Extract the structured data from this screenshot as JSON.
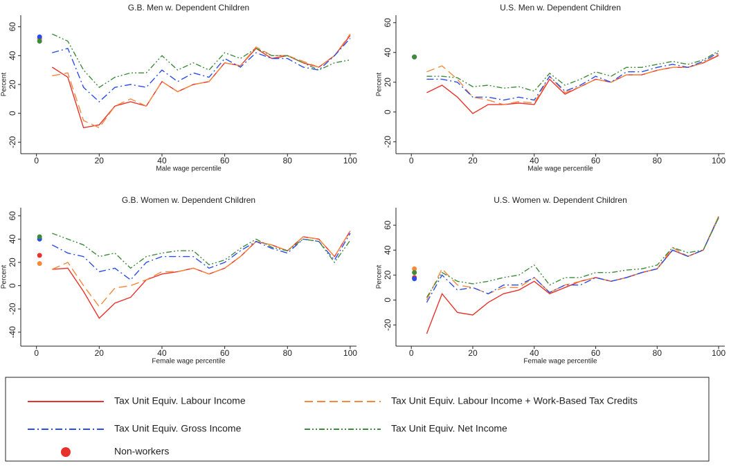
{
  "chart_data": [
    {
      "type": "line",
      "title": "G.B. Men w. Dependent Children",
      "x_label": "Male wage percentile",
      "y_label": "Percent",
      "xlim": [
        -5,
        102
      ],
      "xticks": [
        0,
        20,
        40,
        60,
        80,
        100
      ],
      "ylim": [
        -28,
        68
      ],
      "yticks": [
        -20,
        0,
        20,
        40,
        60
      ],
      "nonworker_x": 1,
      "x": [
        5,
        10,
        15,
        20,
        25,
        30,
        35,
        40,
        45,
        50,
        55,
        60,
        65,
        70,
        75,
        80,
        85,
        90,
        95,
        100
      ],
      "series": [
        {
          "name": "Tax Unit Equiv. Labour Income",
          "color": "#e8312a",
          "dash": "none",
          "nonworker": 52,
          "values": [
            32,
            25,
            -10,
            -8,
            5,
            8,
            5,
            22,
            15,
            20,
            22,
            35,
            33,
            45,
            38,
            40,
            35,
            32,
            40,
            54
          ]
        },
        {
          "name": "Tax Unit Equiv. Labour Income + Work-Based Tax Credits",
          "color": "#f5883b",
          "dash": "12,6",
          "nonworker": 51,
          "values": [
            26,
            28,
            -5,
            -10,
            5,
            10,
            5,
            22,
            15,
            20,
            22,
            35,
            33,
            46,
            40,
            40,
            36,
            32,
            40,
            55
          ]
        },
        {
          "name": "Tax Unit Equiv. Gross Income",
          "color": "#2a4de8",
          "dash": "10,4,2,4",
          "nonworker": 53,
          "values": [
            42,
            45,
            18,
            8,
            18,
            20,
            18,
            30,
            22,
            28,
            25,
            38,
            32,
            42,
            38,
            38,
            32,
            30,
            40,
            52
          ]
        },
        {
          "name": "Tax Unit Equiv. Net Income",
          "color": "#3d8a3a",
          "dash": "8,3,2,3,2,3",
          "nonworker": 50,
          "values": [
            55,
            50,
            30,
            18,
            25,
            28,
            28,
            40,
            30,
            35,
            30,
            42,
            38,
            45,
            40,
            40,
            35,
            30,
            35,
            37
          ]
        }
      ]
    },
    {
      "type": "line",
      "title": "U.S. Men w. Dependent Children",
      "x_label": "Male wage percentile",
      "y_label": "Percent",
      "xlim": [
        -5,
        102
      ],
      "xticks": [
        0,
        20,
        40,
        60,
        80,
        100
      ],
      "ylim": [
        -28,
        65
      ],
      "yticks": [
        -20,
        0,
        20,
        40,
        60
      ],
      "nonworker_x": 1,
      "x": [
        5,
        10,
        15,
        20,
        25,
        30,
        35,
        40,
        45,
        50,
        55,
        60,
        65,
        70,
        75,
        80,
        85,
        90,
        95,
        100
      ],
      "series": [
        {
          "name": "Tax Unit Equiv. Labour Income",
          "color": "#e8312a",
          "dash": "none",
          "nonworker": 37,
          "values": [
            13,
            18,
            10,
            -1,
            5,
            5,
            6,
            5,
            22,
            12,
            17,
            22,
            20,
            25,
            25,
            28,
            30,
            30,
            33,
            38
          ]
        },
        {
          "name": "Tax Unit Equiv. Labour Income + Work-Based Tax Credits",
          "color": "#f5883b",
          "dash": "12,6",
          "nonworker": 37,
          "values": [
            27,
            31,
            22,
            10,
            8,
            5,
            7,
            6,
            24,
            13,
            17,
            22,
            20,
            25,
            25,
            28,
            30,
            30,
            33,
            39
          ]
        },
        {
          "name": "Tax Unit Equiv. Gross Income",
          "color": "#2a4de8",
          "dash": "10,4,2,4",
          "nonworker": 37,
          "values": [
            22,
            22,
            20,
            10,
            10,
            8,
            10,
            8,
            24,
            14,
            18,
            24,
            20,
            27,
            27,
            30,
            32,
            30,
            34,
            40
          ]
        },
        {
          "name": "Tax Unit Equiv. Net Income",
          "color": "#3d8a3a",
          "dash": "8,3,2,3,2,3",
          "nonworker": 37,
          "values": [
            24,
            24,
            23,
            17,
            18,
            16,
            17,
            14,
            26,
            18,
            22,
            27,
            24,
            30,
            30,
            32,
            34,
            32,
            35,
            41
          ]
        }
      ]
    },
    {
      "type": "line",
      "title": "G.B. Women w. Dependent Children",
      "x_label": "Female wage percentile",
      "y_label": "Percent",
      "xlim": [
        -5,
        102
      ],
      "xticks": [
        0,
        20,
        40,
        60,
        80,
        100
      ],
      "ylim": [
        -52,
        67
      ],
      "yticks": [
        -40,
        -20,
        0,
        20,
        40,
        60
      ],
      "nonworker_x": 1,
      "x": [
        5,
        10,
        15,
        20,
        25,
        30,
        35,
        40,
        45,
        50,
        55,
        60,
        65,
        70,
        75,
        80,
        85,
        90,
        95,
        100
      ],
      "series": [
        {
          "name": "Tax Unit Equiv. Labour Income",
          "color": "#e8312a",
          "dash": "none",
          "nonworker": 26,
          "values": [
            14,
            15,
            -5,
            -28,
            -15,
            -10,
            5,
            10,
            12,
            15,
            10,
            15,
            25,
            38,
            35,
            30,
            42,
            40,
            25,
            47
          ]
        },
        {
          "name": "Tax Unit Equiv. Labour Income + Work-Based Tax Credits",
          "color": "#f5883b",
          "dash": "12,6",
          "nonworker": 19,
          "values": [
            14,
            20,
            0,
            -18,
            -2,
            0,
            5,
            12,
            12,
            15,
            10,
            15,
            25,
            38,
            35,
            30,
            42,
            40,
            25,
            47
          ]
        },
        {
          "name": "Tax Unit Equiv. Gross Income",
          "color": "#2a4de8",
          "dash": "10,4,2,4",
          "nonworker": 40,
          "values": [
            35,
            28,
            25,
            12,
            15,
            5,
            20,
            25,
            25,
            25,
            15,
            20,
            30,
            38,
            32,
            28,
            40,
            38,
            22,
            45
          ]
        },
        {
          "name": "Tax Unit Equiv. Net Income",
          "color": "#3d8a3a",
          "dash": "8,3,2,3,2,3",
          "nonworker": 42,
          "values": [
            45,
            40,
            35,
            25,
            28,
            15,
            25,
            28,
            30,
            30,
            18,
            22,
            32,
            40,
            33,
            30,
            40,
            38,
            20,
            39
          ]
        }
      ]
    },
    {
      "type": "line",
      "title": "U.S. Women w. Dependent Children",
      "x_label": "Female wage percentile",
      "y_label": "Percent",
      "xlim": [
        -5,
        102
      ],
      "xticks": [
        0,
        20,
        40,
        60,
        80,
        100
      ],
      "ylim": [
        -37,
        74
      ],
      "yticks": [
        -20,
        0,
        20,
        40,
        60
      ],
      "nonworker_x": 1,
      "x": [
        5,
        10,
        15,
        20,
        25,
        30,
        35,
        40,
        45,
        50,
        55,
        60,
        65,
        70,
        75,
        80,
        85,
        90,
        95,
        100
      ],
      "series": [
        {
          "name": "Tax Unit Equiv. Labour Income",
          "color": "#e8312a",
          "dash": "none",
          "nonworker": 18,
          "values": [
            -27,
            5,
            -10,
            -12,
            -2,
            5,
            8,
            15,
            5,
            10,
            15,
            18,
            15,
            18,
            22,
            25,
            40,
            35,
            40,
            67
          ]
        },
        {
          "name": "Tax Unit Equiv. Labour Income + Work-Based Tax Credits",
          "color": "#f5883b",
          "dash": "12,6",
          "nonworker": 25,
          "values": [
            0,
            25,
            12,
            10,
            5,
            10,
            10,
            18,
            6,
            12,
            15,
            18,
            15,
            18,
            22,
            25,
            42,
            35,
            40,
            67
          ]
        },
        {
          "name": "Tax Unit Equiv. Gross Income",
          "color": "#2a4de8",
          "dash": "10,4,2,4",
          "nonworker": 17,
          "values": [
            -2,
            20,
            8,
            10,
            5,
            12,
            12,
            18,
            6,
            12,
            12,
            18,
            15,
            18,
            22,
            25,
            40,
            35,
            40,
            66
          ]
        },
        {
          "name": "Tax Unit Equiv. Net Income",
          "color": "#3d8a3a",
          "dash": "8,3,2,3,2,3",
          "nonworker": 22,
          "values": [
            2,
            22,
            15,
            13,
            15,
            18,
            20,
            28,
            12,
            18,
            18,
            22,
            22,
            24,
            25,
            28,
            42,
            38,
            40,
            66
          ]
        }
      ]
    }
  ],
  "legend": {
    "nonworkers": "Non-workers",
    "nonworkers_color": "#e8312a"
  }
}
